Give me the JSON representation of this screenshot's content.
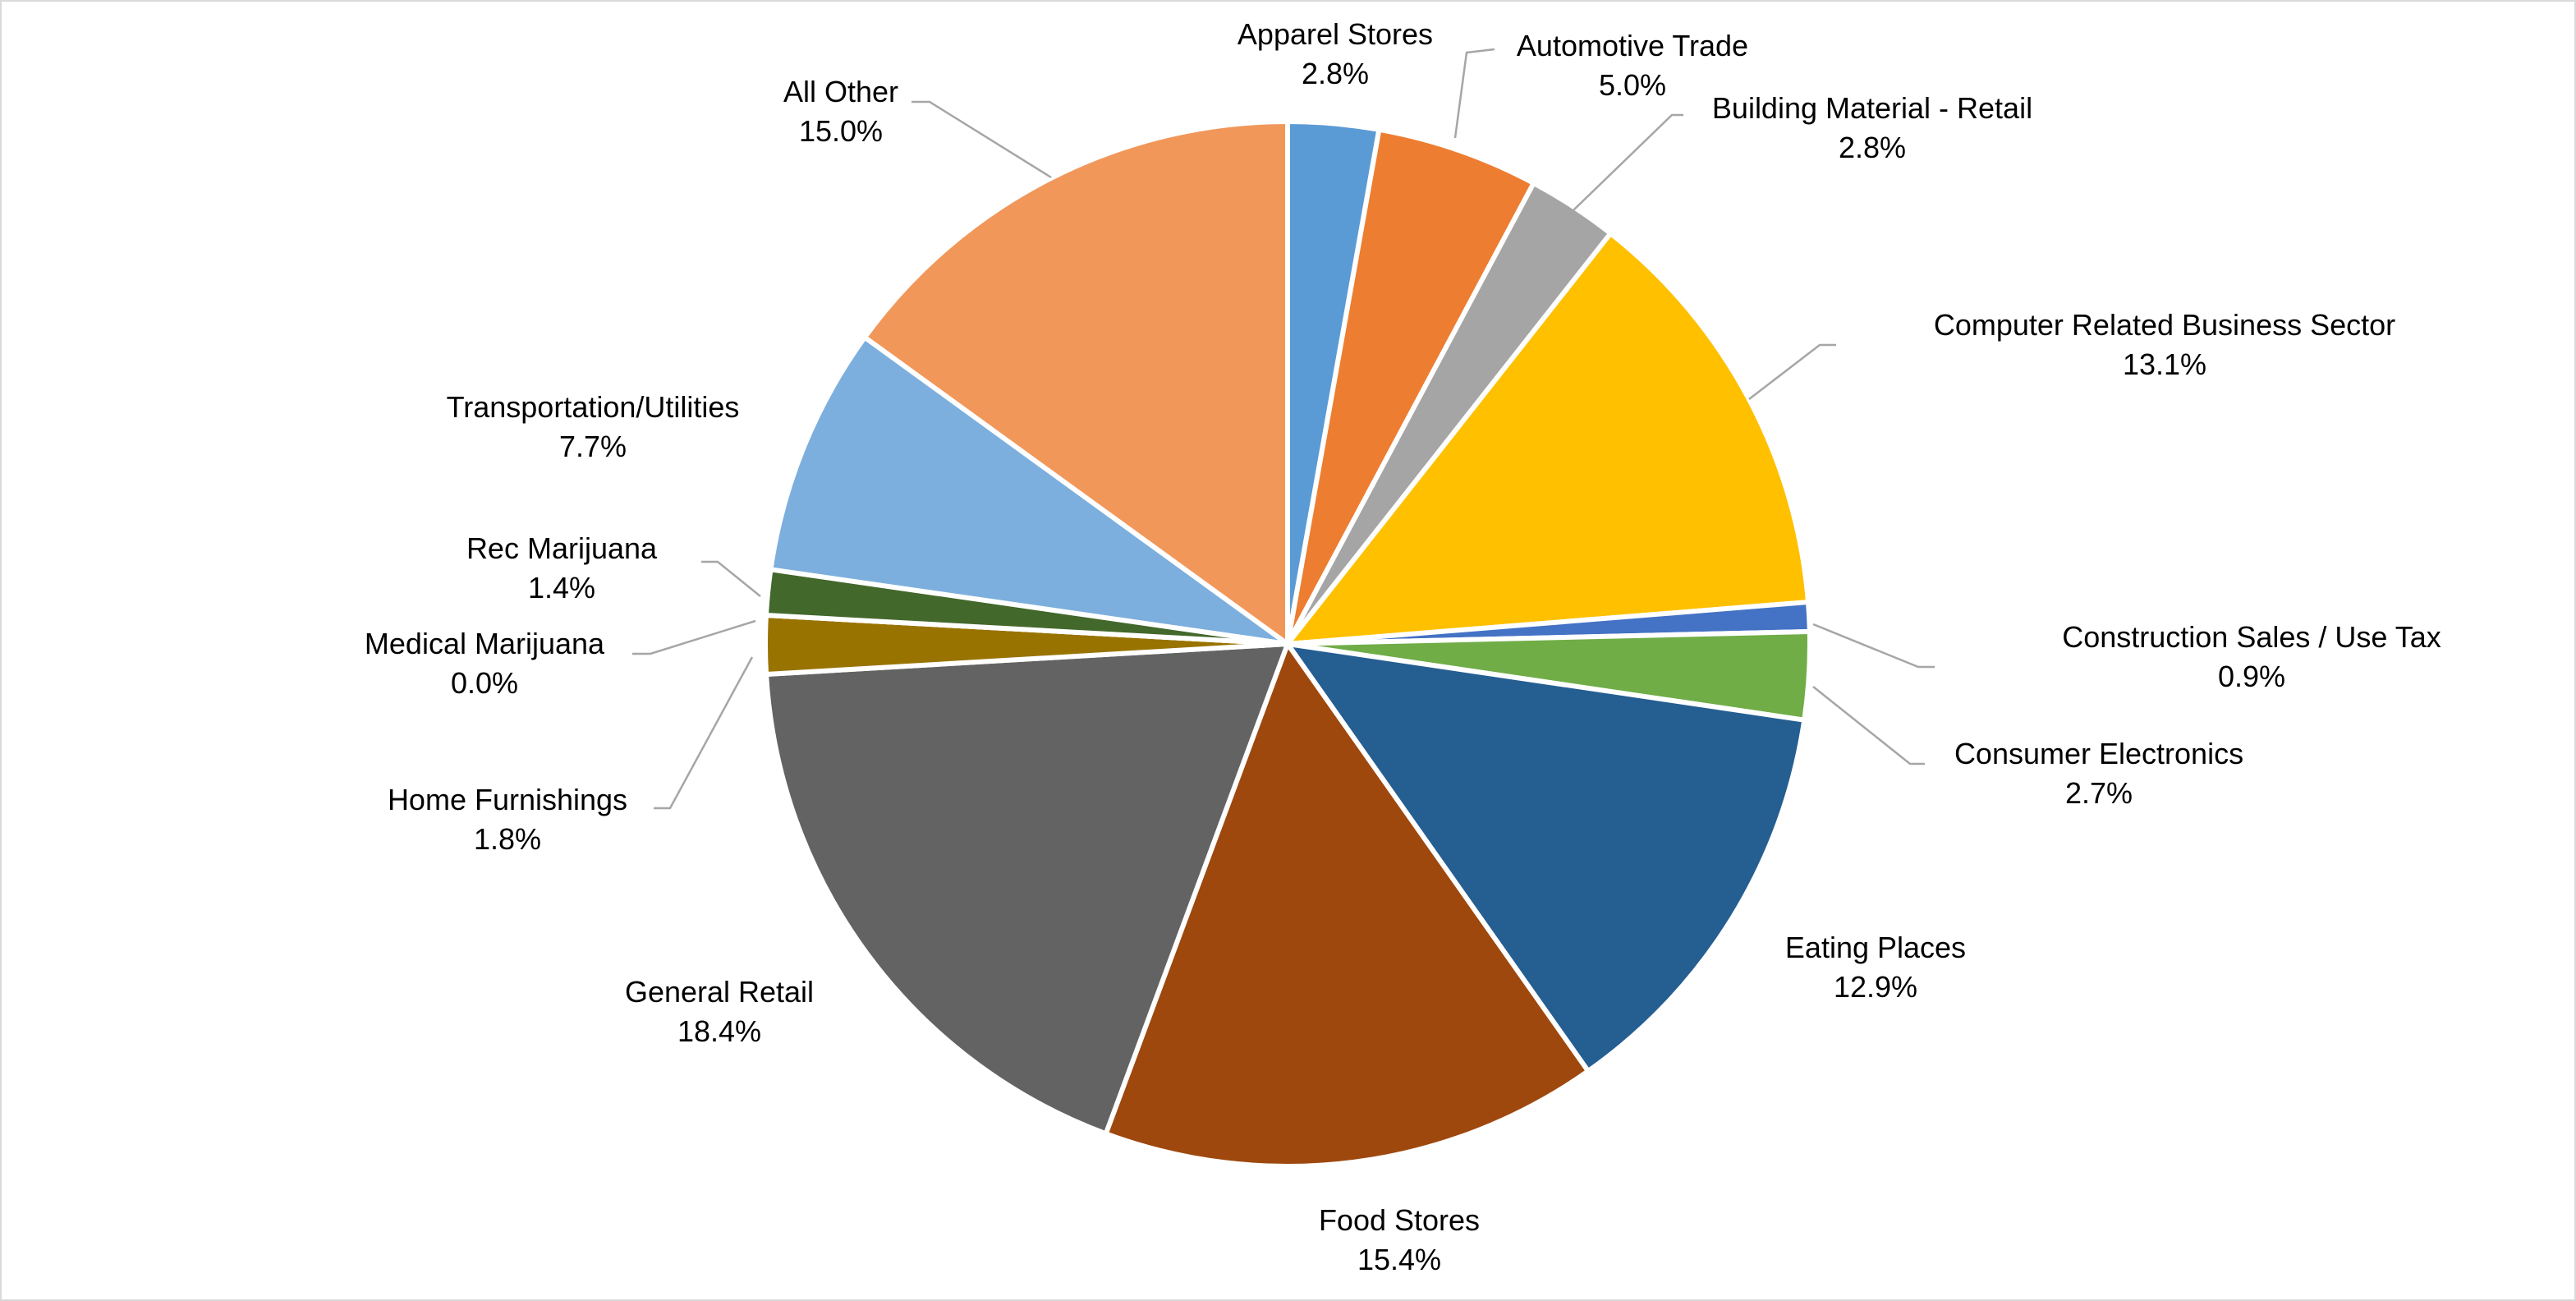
{
  "chart_data": {
    "type": "pie",
    "title": "",
    "start_angle": "12 o'clock",
    "direction": "clockwise",
    "slices": [
      {
        "label": "Apparel Stores",
        "value": 2.8,
        "display": "2.8%",
        "color": "#5B9BD5"
      },
      {
        "label": "Automotive Trade",
        "value": 5.0,
        "display": "5.0%",
        "color": "#ED7D31"
      },
      {
        "label": "Building Material - Retail",
        "value": 2.8,
        "display": "2.8%",
        "color": "#A5A5A5"
      },
      {
        "label": "Computer Related Business Sector",
        "value": 13.1,
        "display": "13.1%",
        "color": "#FFC000"
      },
      {
        "label": "Construction Sales / Use Tax",
        "value": 0.9,
        "display": "0.9%",
        "color": "#4472C4"
      },
      {
        "label": "Consumer Electronics",
        "value": 2.7,
        "display": "2.7%",
        "color": "#70AD47"
      },
      {
        "label": "Eating Places",
        "value": 12.9,
        "display": "12.9%",
        "color": "#255E91"
      },
      {
        "label": "Food Stores",
        "value": 15.4,
        "display": "15.4%",
        "color": "#9E480E"
      },
      {
        "label": "General Retail",
        "value": 18.4,
        "display": "18.4%",
        "color": "#636363"
      },
      {
        "label": "Home Furnishings",
        "value": 1.8,
        "display": "1.8%",
        "color": "#997300"
      },
      {
        "label": "Medical Marijuana",
        "value": 0.0,
        "display": "0.0%",
        "color": "#264478"
      },
      {
        "label": "Rec Marijuana",
        "value": 1.4,
        "display": "1.4%",
        "color": "#43682B"
      },
      {
        "label": "Transportation/Utilities",
        "value": 7.7,
        "display": "7.7%",
        "color": "#7CAFDD"
      },
      {
        "label": "All Other",
        "value": 15.0,
        "display": "15.0%",
        "color": "#F1975A"
      }
    ]
  }
}
